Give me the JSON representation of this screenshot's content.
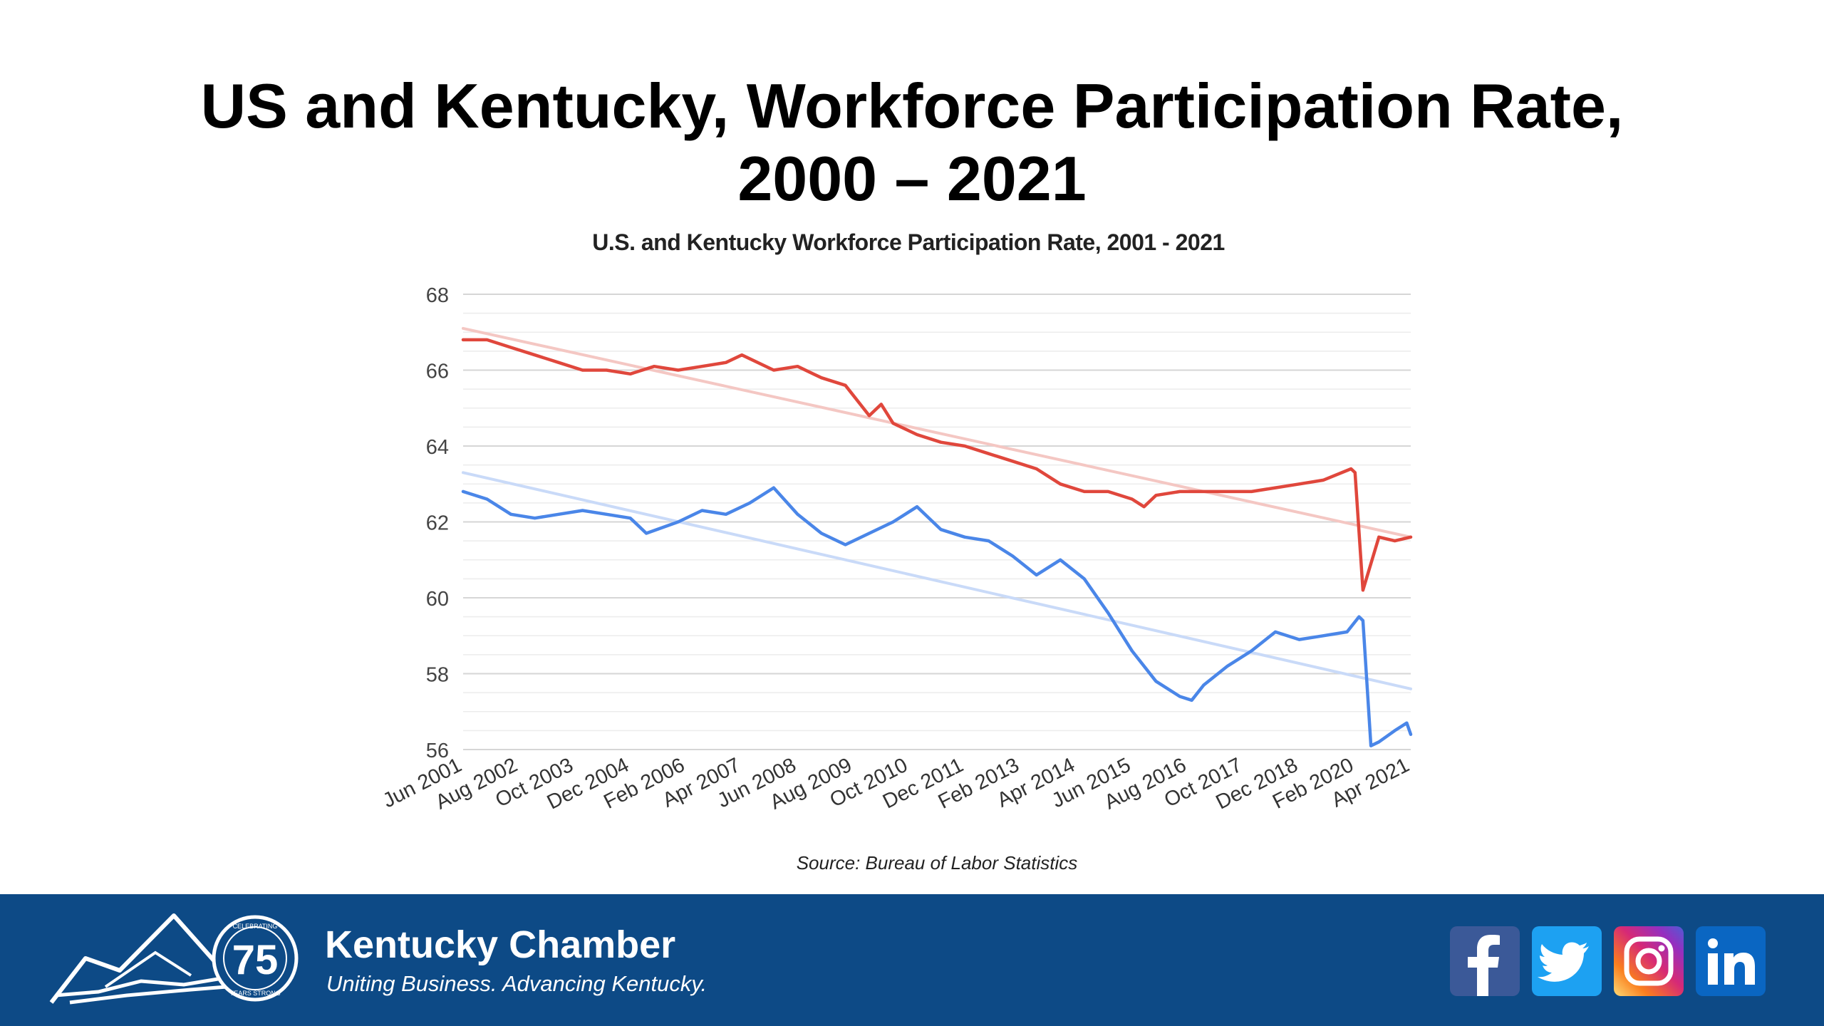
{
  "slide": {
    "title_line1": "US and Kentucky, Workforce Participation Rate,",
    "title_line2": "2000 – 2021"
  },
  "source": "Source: Bureau of Labor Statistics",
  "footer": {
    "brand_name": "Kentucky Chamber",
    "tagline": "Uniting Business. Advancing Kentucky.",
    "badge_number": "75",
    "badge_top_text": "CELEBRATING",
    "badge_bottom_text": "YEARS STRONG",
    "social": [
      "facebook-icon",
      "twitter-icon",
      "instagram-icon",
      "linkedin-icon"
    ]
  },
  "chart_data": {
    "type": "line",
    "title": "U.S. and Kentucky Workforce Participation Rate, 2001 - 2021",
    "xlabel": "",
    "ylabel": "",
    "ylim": [
      56,
      68
    ],
    "yticks": [
      56,
      58,
      60,
      62,
      64,
      66,
      68
    ],
    "grid": true,
    "legend": "none",
    "x_start": "Jun 2001",
    "x_end": "Apr 2021",
    "x_tick_labels": [
      "Jun 2001",
      "Aug 2002",
      "Oct 2003",
      "Dec 2004",
      "Feb 2006",
      "Apr 2007",
      "Jun 2008",
      "Aug 2009",
      "Oct 2010",
      "Dec 2011",
      "Feb 2013",
      "Apr 2014",
      "Jun 2015",
      "Aug 2016",
      "Oct 2017",
      "Dec 2018",
      "Feb 2020",
      "Apr 2021"
    ],
    "colors": {
      "us": "#e0473c",
      "ky": "#4a86e8",
      "us_trend": "#f4c7c3",
      "ky_trend": "#c9daf8"
    },
    "series": [
      {
        "key": "us",
        "points": [
          [
            "Jun 2001",
            66.8
          ],
          [
            "Dec 2001",
            66.8
          ],
          [
            "Jun 2002",
            66.6
          ],
          [
            "Dec 2002",
            66.4
          ],
          [
            "Jun 2003",
            66.2
          ],
          [
            "Dec 2003",
            66.0
          ],
          [
            "Jun 2004",
            66.0
          ],
          [
            "Dec 2004",
            65.9
          ],
          [
            "Jun 2005",
            66.1
          ],
          [
            "Dec 2005",
            66.0
          ],
          [
            "Jun 2006",
            66.1
          ],
          [
            "Dec 2006",
            66.2
          ],
          [
            "Apr 2007",
            66.4
          ],
          [
            "Dec 2007",
            66.0
          ],
          [
            "Jun 2008",
            66.1
          ],
          [
            "Dec 2008",
            65.8
          ],
          [
            "Jun 2009",
            65.6
          ],
          [
            "Dec 2009",
            64.8
          ],
          [
            "Mar 2010",
            65.1
          ],
          [
            "Jun 2010",
            64.6
          ],
          [
            "Dec 2010",
            64.3
          ],
          [
            "Jun 2011",
            64.1
          ],
          [
            "Dec 2011",
            64.0
          ],
          [
            "Jun 2012",
            63.8
          ],
          [
            "Dec 2012",
            63.6
          ],
          [
            "Jun 2013",
            63.4
          ],
          [
            "Dec 2013",
            63.0
          ],
          [
            "Jun 2014",
            62.8
          ],
          [
            "Dec 2014",
            62.8
          ],
          [
            "Jun 2015",
            62.6
          ],
          [
            "Sep 2015",
            62.4
          ],
          [
            "Dec 2015",
            62.7
          ],
          [
            "Jun 2016",
            62.8
          ],
          [
            "Dec 2016",
            62.8
          ],
          [
            "Jun 2017",
            62.8
          ],
          [
            "Dec 2017",
            62.8
          ],
          [
            "Jun 2018",
            62.9
          ],
          [
            "Dec 2018",
            63.0
          ],
          [
            "Jun 2019",
            63.1
          ],
          [
            "Jan 2020",
            63.4
          ],
          [
            "Feb 2020",
            63.3
          ],
          [
            "Apr 2020",
            60.2
          ],
          [
            "Aug 2020",
            61.6
          ],
          [
            "Dec 2020",
            61.5
          ],
          [
            "Apr 2021",
            61.6
          ]
        ]
      },
      {
        "key": "ky",
        "points": [
          [
            "Jun 2001",
            62.8
          ],
          [
            "Dec 2001",
            62.6
          ],
          [
            "Jun 2002",
            62.2
          ],
          [
            "Dec 2002",
            62.1
          ],
          [
            "Jun 2003",
            62.2
          ],
          [
            "Dec 2003",
            62.3
          ],
          [
            "Jun 2004",
            62.2
          ],
          [
            "Dec 2004",
            62.1
          ],
          [
            "Apr 2005",
            61.7
          ],
          [
            "Dec 2005",
            62.0
          ],
          [
            "Jun 2006",
            62.3
          ],
          [
            "Dec 2006",
            62.2
          ],
          [
            "Jun 2007",
            62.5
          ],
          [
            "Dec 2007",
            62.9
          ],
          [
            "Jun 2008",
            62.2
          ],
          [
            "Dec 2008",
            61.7
          ],
          [
            "Jun 2009",
            61.4
          ],
          [
            "Dec 2009",
            61.7
          ],
          [
            "Jun 2010",
            62.0
          ],
          [
            "Dec 2010",
            62.4
          ],
          [
            "Jun 2011",
            61.8
          ],
          [
            "Dec 2011",
            61.6
          ],
          [
            "Jun 2012",
            61.5
          ],
          [
            "Dec 2012",
            61.1
          ],
          [
            "Jun 2013",
            60.6
          ],
          [
            "Dec 2013",
            61.0
          ],
          [
            "Jun 2014",
            60.5
          ],
          [
            "Dec 2014",
            59.6
          ],
          [
            "Jun 2015",
            58.6
          ],
          [
            "Dec 2015",
            57.8
          ],
          [
            "Jun 2016",
            57.4
          ],
          [
            "Sep 2016",
            57.3
          ],
          [
            "Dec 2016",
            57.7
          ],
          [
            "Jun 2017",
            58.2
          ],
          [
            "Dec 2017",
            58.6
          ],
          [
            "Jun 2018",
            59.1
          ],
          [
            "Dec 2018",
            58.9
          ],
          [
            "Jun 2019",
            59.0
          ],
          [
            "Dec 2019",
            59.1
          ],
          [
            "Mar 2020",
            59.5
          ],
          [
            "Apr 2020",
            59.4
          ],
          [
            "Jun 2020",
            56.1
          ],
          [
            "Aug 2020",
            56.2
          ],
          [
            "Dec 2020",
            56.5
          ],
          [
            "Mar 2021",
            56.7
          ],
          [
            "Apr 2021",
            56.4
          ]
        ]
      },
      {
        "key": "us_trend",
        "points": [
          [
            "Jun 2001",
            67.1
          ],
          [
            "Apr 2021",
            61.6
          ]
        ]
      },
      {
        "key": "ky_trend",
        "points": [
          [
            "Jun 2001",
            63.3
          ],
          [
            "Apr 2021",
            57.6
          ]
        ]
      }
    ]
  }
}
